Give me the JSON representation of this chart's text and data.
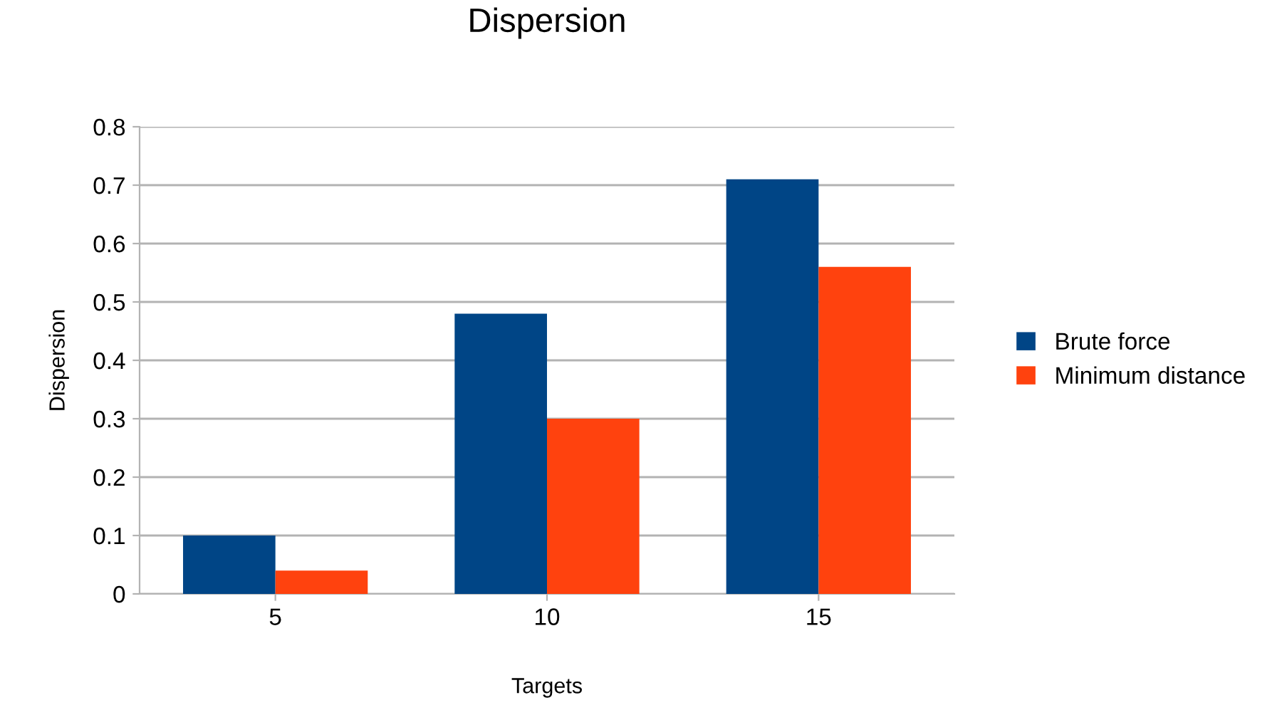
{
  "chart_data": {
    "type": "bar",
    "title": "Dispersion",
    "xlabel": "Targets",
    "ylabel": "Dispersion",
    "categories": [
      "5",
      "10",
      "15"
    ],
    "series": [
      {
        "name": "Brute force",
        "color": "#004586",
        "values": [
          0.1,
          0.48,
          0.71
        ]
      },
      {
        "name": "Minimum distance",
        "color": "#ff420e",
        "values": [
          0.04,
          0.3,
          0.56
        ]
      }
    ],
    "ylim": [
      0,
      0.8
    ],
    "yticks": [
      0,
      0.1,
      0.2,
      0.3,
      0.4,
      0.5,
      0.6,
      0.7,
      0.8
    ],
    "grid": "y",
    "legend": "right"
  }
}
